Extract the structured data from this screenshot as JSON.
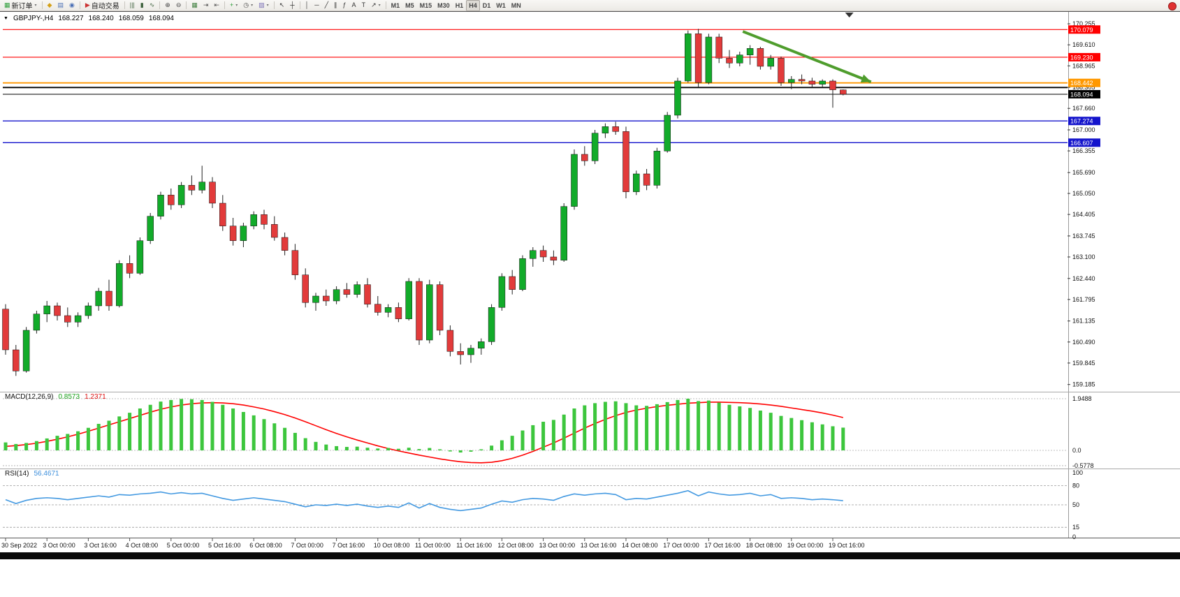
{
  "toolbar": {
    "groups": [
      {
        "items": [
          {
            "name": "new-order",
            "glyph": "▦",
            "glyph_color": "#2e9e3a",
            "label": "新订单",
            "caret": true
          }
        ]
      },
      {
        "items": [
          {
            "name": "new-chart",
            "glyph": "◆",
            "glyph_color": "#d4a017"
          },
          {
            "name": "profiles",
            "glyph": "▤",
            "glyph_color": "#4a6fb5"
          },
          {
            "name": "data-window",
            "glyph": "◉",
            "glyph_color": "#4a6fb5"
          }
        ]
      },
      {
        "items": [
          {
            "name": "autotrading",
            "glyph": "▶",
            "glyph_color": "#cc3333",
            "label": "自动交易"
          }
        ]
      },
      {
        "items": [
          {
            "name": "bar-chart-type",
            "glyph": "|||",
            "glyph_color": "#3a5f3a"
          },
          {
            "name": "candlestick-type",
            "glyph": "▮",
            "glyph_color": "#3a5f3a"
          },
          {
            "name": "line-chart-type",
            "glyph": "∿",
            "glyph_color": "#3a5f3a"
          }
        ]
      },
      {
        "items": [
          {
            "name": "zoom-in",
            "glyph": "⊕",
            "glyph_color": "#444444"
          },
          {
            "name": "zoom-out",
            "glyph": "⊖",
            "glyph_color": "#444444"
          }
        ]
      },
      {
        "items": [
          {
            "name": "tile-windows",
            "glyph": "▦",
            "glyph_color": "#3f7f3f"
          },
          {
            "name": "auto-scroll",
            "glyph": "⇥",
            "glyph_color": "#555555"
          },
          {
            "name": "chart-shift",
            "glyph": "⇤",
            "glyph_color": "#555555"
          }
        ]
      },
      {
        "items": [
          {
            "name": "indicators",
            "glyph": "+",
            "glyph_color": "#2e9e3a",
            "caret": true
          },
          {
            "name": "periods",
            "glyph": "◷",
            "glyph_color": "#444444",
            "caret": true
          },
          {
            "name": "templates",
            "glyph": "▨",
            "glyph_color": "#7a6fb5",
            "caret": true
          }
        ]
      },
      {
        "items": [
          {
            "name": "cursor",
            "glyph": "↖",
            "glyph_color": "#333333"
          },
          {
            "name": "crosshair",
            "glyph": "┼",
            "glyph_color": "#333333"
          }
        ]
      },
      {
        "items": [
          {
            "name": "vertical-line",
            "glyph": "│",
            "glyph_color": "#333333"
          },
          {
            "name": "horizontal-line",
            "glyph": "─",
            "glyph_color": "#333333"
          },
          {
            "name": "trendline",
            "glyph": "╱",
            "glyph_color": "#333333"
          },
          {
            "name": "channel",
            "glyph": "∥",
            "glyph_color": "#333333"
          },
          {
            "name": "fibonacci",
            "glyph": "ƒ",
            "glyph_color": "#333333"
          },
          {
            "name": "text",
            "glyph": "A",
            "glyph_color": "#333333"
          },
          {
            "name": "text-label",
            "glyph": "T",
            "glyph_color": "#333333"
          },
          {
            "name": "arrows",
            "glyph": "↗",
            "glyph_color": "#333333",
            "caret": true
          }
        ]
      }
    ],
    "timeframes": [
      "M1",
      "M5",
      "M15",
      "M30",
      "H1",
      "H4",
      "D1",
      "W1",
      "MN"
    ],
    "active_timeframe": "H4"
  },
  "chart_header": {
    "symbol": "GBPJPY-,H4",
    "open": "168.227",
    "high": "168.240",
    "low": "168.059",
    "close": "168.094"
  },
  "indicators": {
    "macd_label": "MACD(12,26,9)",
    "macd_value": "0.8573",
    "macd_signal_value": "1.2371",
    "rsi_label": "RSI(14)",
    "rsi_value": "56.4671"
  },
  "colors": {
    "candle_up": "#12ab2a",
    "candle_down": "#e23b3b",
    "macd_bar": "#3dc63d",
    "macd_signal": "#ff0000",
    "rsi_line": "#4399e1",
    "axis_text": "#111111",
    "background": "#ffffff"
  },
  "chart_data": {
    "type": "candlestick",
    "symbol": "GBPJPY",
    "timeframe": "H4",
    "price_axis": {
      "min": 159.05,
      "max": 170.45,
      "ticks": [
        "170.255",
        "169.610",
        "168.965",
        "168.305",
        "167.660",
        "167.000",
        "166.355",
        "165.690",
        "165.050",
        "164.405",
        "163.745",
        "163.100",
        "162.440",
        "161.795",
        "161.135",
        "160.490",
        "159.845",
        "159.185"
      ]
    },
    "time_labels": [
      "30 Sep 2022",
      "3 Oct 00:00",
      "3 Oct 16:00",
      "4 Oct 08:00",
      "5 Oct 00:00",
      "5 Oct 16:00",
      "6 Oct 08:00",
      "7 Oct 00:00",
      "7 Oct 16:00",
      "10 Oct 08:00",
      "11 Oct 00:00",
      "11 Oct 16:00",
      "12 Oct 08:00",
      "13 Oct 00:00",
      "13 Oct 16:00",
      "14 Oct 08:00",
      "17 Oct 00:00",
      "17 Oct 16:00",
      "18 Oct 08:00",
      "19 Oct 00:00",
      "19 Oct 16:00"
    ],
    "candles_per_label": 4,
    "candles": [
      [
        161.5,
        161.65,
        160.1,
        160.25
      ],
      [
        160.25,
        160.4,
        159.45,
        159.6
      ],
      [
        159.6,
        160.95,
        159.55,
        160.85
      ],
      [
        160.85,
        161.45,
        160.75,
        161.35
      ],
      [
        161.35,
        161.75,
        161.1,
        161.6
      ],
      [
        161.6,
        161.7,
        161.15,
        161.3
      ],
      [
        161.3,
        161.55,
        160.95,
        161.1
      ],
      [
        161.1,
        161.4,
        160.95,
        161.3
      ],
      [
        161.3,
        161.7,
        161.2,
        161.6
      ],
      [
        161.6,
        162.15,
        161.45,
        162.05
      ],
      [
        162.05,
        162.4,
        161.45,
        161.6
      ],
      [
        161.6,
        163.0,
        161.55,
        162.9
      ],
      [
        162.9,
        163.15,
        162.45,
        162.6
      ],
      [
        162.6,
        163.7,
        162.55,
        163.6
      ],
      [
        163.6,
        164.45,
        163.5,
        164.35
      ],
      [
        164.35,
        165.1,
        164.25,
        165.0
      ],
      [
        165.0,
        165.2,
        164.55,
        164.7
      ],
      [
        164.7,
        165.4,
        164.6,
        165.3
      ],
      [
        165.3,
        165.6,
        165.0,
        165.15
      ],
      [
        165.15,
        165.9,
        165.05,
        165.4
      ],
      [
        165.4,
        165.55,
        164.6,
        164.75
      ],
      [
        164.75,
        165.0,
        163.9,
        164.05
      ],
      [
        164.05,
        164.3,
        163.45,
        163.6
      ],
      [
        163.6,
        164.15,
        163.4,
        164.05
      ],
      [
        164.05,
        164.5,
        163.95,
        164.4
      ],
      [
        164.4,
        164.55,
        163.95,
        164.1
      ],
      [
        164.1,
        164.35,
        163.6,
        163.7
      ],
      [
        163.7,
        163.85,
        163.15,
        163.3
      ],
      [
        163.3,
        163.5,
        162.4,
        162.55
      ],
      [
        162.55,
        162.75,
        161.55,
        161.7
      ],
      [
        161.7,
        162.0,
        161.45,
        161.9
      ],
      [
        161.9,
        162.1,
        161.6,
        161.75
      ],
      [
        161.75,
        162.2,
        161.65,
        162.1
      ],
      [
        162.1,
        162.3,
        161.85,
        161.95
      ],
      [
        161.95,
        162.35,
        161.85,
        162.25
      ],
      [
        162.25,
        162.45,
        161.55,
        161.65
      ],
      [
        161.65,
        161.9,
        161.3,
        161.4
      ],
      [
        161.4,
        161.65,
        161.25,
        161.55
      ],
      [
        161.55,
        161.7,
        161.1,
        161.2
      ],
      [
        161.2,
        162.45,
        161.15,
        162.35
      ],
      [
        162.35,
        162.45,
        160.4,
        160.55
      ],
      [
        160.55,
        162.4,
        160.45,
        162.25
      ],
      [
        162.25,
        162.35,
        160.7,
        160.85
      ],
      [
        160.85,
        161.0,
        160.05,
        160.2
      ],
      [
        160.2,
        160.45,
        159.8,
        160.1
      ],
      [
        160.1,
        160.4,
        159.85,
        160.3
      ],
      [
        160.3,
        160.6,
        160.1,
        160.5
      ],
      [
        160.5,
        161.65,
        160.4,
        161.55
      ],
      [
        161.55,
        162.6,
        161.45,
        162.5
      ],
      [
        162.5,
        162.7,
        161.95,
        162.1
      ],
      [
        162.1,
        163.15,
        162.05,
        163.05
      ],
      [
        163.05,
        163.4,
        162.8,
        163.3
      ],
      [
        163.3,
        163.45,
        162.95,
        163.1
      ],
      [
        163.1,
        163.3,
        162.85,
        163.0
      ],
      [
        163.0,
        164.75,
        162.95,
        164.65
      ],
      [
        164.65,
        166.4,
        164.55,
        166.25
      ],
      [
        166.25,
        166.5,
        165.9,
        166.05
      ],
      [
        166.05,
        167.0,
        165.95,
        166.9
      ],
      [
        166.9,
        167.2,
        166.75,
        167.1
      ],
      [
        167.1,
        167.25,
        166.85,
        166.95
      ],
      [
        166.95,
        167.1,
        164.9,
        165.1
      ],
      [
        165.1,
        165.75,
        165.0,
        165.65
      ],
      [
        165.65,
        165.8,
        165.15,
        165.3
      ],
      [
        165.3,
        166.45,
        165.2,
        166.35
      ],
      [
        166.35,
        167.55,
        166.3,
        167.45
      ],
      [
        167.45,
        168.6,
        167.35,
        168.5
      ],
      [
        168.5,
        170.05,
        168.45,
        169.95
      ],
      [
        169.95,
        170.1,
        168.3,
        168.45
      ],
      [
        168.45,
        169.95,
        168.4,
        169.85
      ],
      [
        169.85,
        169.95,
        169.05,
        169.2
      ],
      [
        169.2,
        169.45,
        168.9,
        169.05
      ],
      [
        169.05,
        169.4,
        168.95,
        169.3
      ],
      [
        169.3,
        169.6,
        169.0,
        169.5
      ],
      [
        169.5,
        169.55,
        168.85,
        168.95
      ],
      [
        168.95,
        169.3,
        168.85,
        169.2
      ],
      [
        169.2,
        169.25,
        168.35,
        168.45
      ],
      [
        168.45,
        168.65,
        168.25,
        168.55
      ],
      [
        168.55,
        168.7,
        168.4,
        168.5
      ],
      [
        168.5,
        168.6,
        168.3,
        168.4
      ],
      [
        168.4,
        168.55,
        168.3,
        168.5
      ],
      [
        168.5,
        168.55,
        167.68,
        168.23
      ],
      [
        168.227,
        168.24,
        168.059,
        168.094
      ]
    ],
    "hlines": [
      {
        "price": 170.079,
        "color": "#ff0000",
        "width": 1.2,
        "badge": true
      },
      {
        "price": 169.23,
        "color": "#ff0000",
        "width": 1.2,
        "badge": true
      },
      {
        "price": 168.442,
        "color": "#ff9800",
        "width": 1.8,
        "badge": true
      },
      {
        "price": 168.3,
        "color": "#000000",
        "width": 1.8,
        "badge": false
      },
      {
        "price": 167.274,
        "color": "#1414cc",
        "width": 1.4,
        "badge": true
      },
      {
        "price": 166.607,
        "color": "#1414cc",
        "width": 1.4,
        "badge": true
      }
    ],
    "current_price": 168.094,
    "trend_arrow": {
      "from_candle": 71.3,
      "from_price": 170.02,
      "to_candle": 83.7,
      "to_price": 168.47,
      "color": "#4f9d2d"
    },
    "shift_marker_candle": 81.6,
    "macd": {
      "label": "MACD(12,26,9)",
      "axis": {
        "max": 1.9488,
        "zero": 0.0,
        "min": -0.5778
      },
      "axis_ticks": [
        {
          "v": 1.9488,
          "label": "1.9488"
        },
        {
          "v": 0,
          "label": "0.0"
        },
        {
          "v": -0.5778,
          "label": "-0.5778"
        }
      ],
      "values": [
        0.3,
        0.24,
        0.28,
        0.35,
        0.45,
        0.55,
        0.62,
        0.72,
        0.85,
        1.0,
        1.12,
        1.28,
        1.42,
        1.58,
        1.72,
        1.84,
        1.9,
        1.94,
        1.93,
        1.9,
        1.83,
        1.72,
        1.58,
        1.45,
        1.32,
        1.18,
        1.02,
        0.85,
        0.66,
        0.46,
        0.32,
        0.22,
        0.16,
        0.13,
        0.14,
        0.1,
        0.07,
        0.09,
        0.06,
        0.1,
        0.05,
        0.09,
        0.04,
        -0.04,
        -0.08,
        -0.05,
        0.04,
        0.18,
        0.38,
        0.55,
        0.75,
        0.95,
        1.08,
        1.15,
        1.35,
        1.58,
        1.7,
        1.78,
        1.83,
        1.85,
        1.78,
        1.7,
        1.68,
        1.74,
        1.82,
        1.9,
        1.95,
        1.86,
        1.88,
        1.8,
        1.72,
        1.66,
        1.6,
        1.5,
        1.42,
        1.3,
        1.22,
        1.14,
        1.06,
        0.98,
        0.91,
        0.8573
      ],
      "signal": [
        0.15,
        0.18,
        0.22,
        0.27,
        0.34,
        0.42,
        0.51,
        0.61,
        0.72,
        0.84,
        0.96,
        1.08,
        1.2,
        1.32,
        1.44,
        1.55,
        1.64,
        1.71,
        1.76,
        1.79,
        1.8,
        1.79,
        1.76,
        1.71,
        1.64,
        1.56,
        1.46,
        1.35,
        1.22,
        1.08,
        0.93,
        0.78,
        0.64,
        0.51,
        0.39,
        0.28,
        0.17,
        0.07,
        -0.02,
        -0.1,
        -0.18,
        -0.25,
        -0.32,
        -0.38,
        -0.43,
        -0.46,
        -0.47,
        -0.45,
        -0.39,
        -0.3,
        -0.18,
        -0.04,
        0.12,
        0.28,
        0.46,
        0.65,
        0.84,
        1.01,
        1.17,
        1.31,
        1.43,
        1.52,
        1.59,
        1.65,
        1.7,
        1.74,
        1.78,
        1.8,
        1.82,
        1.82,
        1.81,
        1.8,
        1.78,
        1.75,
        1.71,
        1.66,
        1.6,
        1.54,
        1.48,
        1.41,
        1.33,
        1.2371
      ]
    },
    "rsi": {
      "label": "RSI(14)",
      "axis": {
        "min": 0,
        "max": 100
      },
      "axis_ticks": [
        {
          "v": 100,
          "label": "100",
          "line": false
        },
        {
          "v": 80,
          "label": "80",
          "line": true
        },
        {
          "v": 50,
          "label": "50",
          "line": true
        },
        {
          "v": 15,
          "label": "15",
          "line": true
        },
        {
          "v": 0,
          "label": "0",
          "line": false
        }
      ],
      "values": [
        58,
        52,
        57,
        60,
        61,
        60,
        58,
        60,
        62,
        64,
        62,
        66,
        65,
        67,
        68,
        70,
        67,
        69,
        67,
        68,
        64,
        60,
        57,
        59,
        61,
        59,
        57,
        55,
        51,
        47,
        50,
        49,
        51,
        49,
        51,
        48,
        46,
        48,
        46,
        53,
        45,
        52,
        46,
        43,
        41,
        43,
        45,
        51,
        56,
        54,
        58,
        60,
        59,
        57,
        63,
        67,
        65,
        67,
        68,
        66,
        58,
        60,
        59,
        62,
        65,
        68,
        72,
        64,
        70,
        67,
        65,
        66,
        68,
        64,
        66,
        60,
        61,
        60,
        58,
        59,
        58,
        56.4671
      ]
    }
  }
}
